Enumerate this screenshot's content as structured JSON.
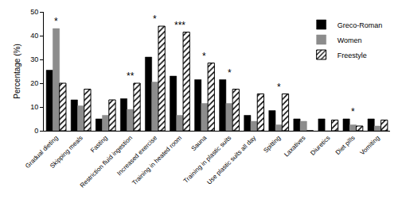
{
  "chart_data": {
    "type": "bar",
    "y_label": "Percentage (%)",
    "categories": [
      "Gradual dieting",
      "Skipping meals",
      "Fasting",
      "Restriction fluid ingestion",
      "Increased exercise",
      "Training in heated room",
      "Sauna",
      "Training in plastic suits",
      "Use plastic suits all day",
      "Spitting",
      "Laxatives",
      "Diuretics",
      "Diet pills",
      "Vomiting"
    ],
    "series": [
      {
        "name": "Greco-Roman",
        "color": "#000000",
        "marker": "solid",
        "values": [
          25.5,
          13,
          5,
          13.5,
          31,
          23,
          21.5,
          21.5,
          6.5,
          8.5,
          5,
          5,
          5,
          5
        ]
      },
      {
        "name": "Women",
        "color": "#8c8c8c",
        "marker": "solid",
        "values": [
          43,
          10.5,
          6.5,
          9,
          20.5,
          6.5,
          11.5,
          11.5,
          4,
          2.5,
          4,
          0,
          2.5,
          2
        ]
      },
      {
        "name": "Freestyle",
        "color": "#000000",
        "marker": "hatched",
        "values": [
          20,
          17.5,
          13,
          20,
          44,
          41.5,
          28.5,
          17.5,
          15.5,
          15.5,
          0,
          4.5,
          2,
          4.5
        ]
      }
    ],
    "annotations": [
      {
        "category": "Gradual dieting",
        "text": "*"
      },
      {
        "category": "Restriction fluid ingestion",
        "text": "**"
      },
      {
        "category": "Increased exercise",
        "text": "*"
      },
      {
        "category": "Training in heated room",
        "text": "***"
      },
      {
        "category": "Sauna",
        "text": "*"
      },
      {
        "category": "Training in plastic suits",
        "text": "*"
      },
      {
        "category": "Spitting",
        "text": "*"
      },
      {
        "category": "Diet pills",
        "text": "*"
      }
    ],
    "ylim": [
      0,
      50
    ],
    "yticks": [
      0,
      10,
      20,
      30,
      40,
      50
    ],
    "grid": false,
    "legend": "top-right"
  }
}
